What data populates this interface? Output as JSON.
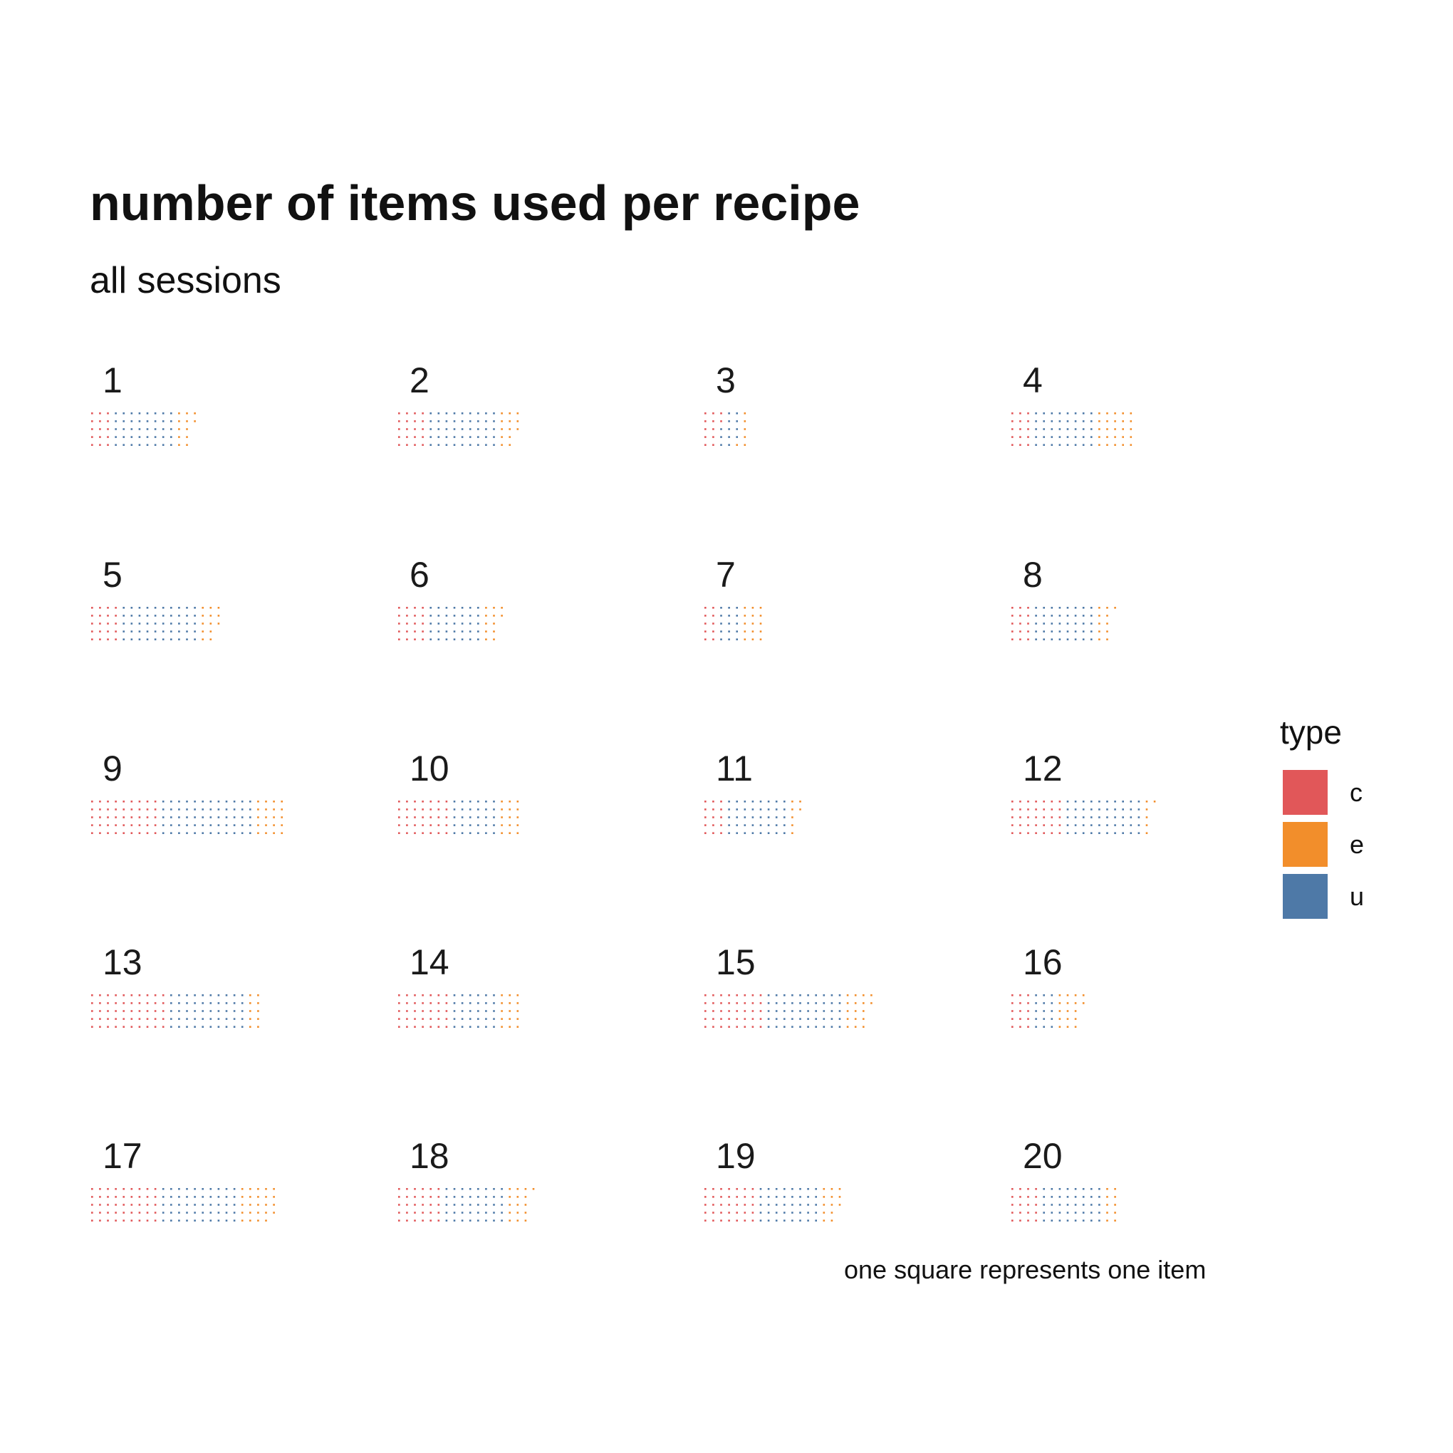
{
  "chart_data": {
    "type": "waffle",
    "title": "number of items used per recipe",
    "subtitle": "all sessions",
    "caption": "one square represents one item",
    "legend": {
      "title": "type",
      "position": "right",
      "entries": [
        {
          "key": "c",
          "label": "c",
          "color": "#E15759"
        },
        {
          "key": "e",
          "label": "e",
          "color": "#F28E2B"
        },
        {
          "key": "u",
          "label": "u",
          "color": "#4E79A7"
        }
      ]
    },
    "squares_per_column": 5,
    "grid": false,
    "panels": [
      {
        "label": "1",
        "c": 15,
        "u": 40,
        "e": 12
      },
      {
        "label": "2",
        "c": 20,
        "u": 45,
        "e": 13
      },
      {
        "label": "3",
        "c": 12,
        "u": 12,
        "e": 6
      },
      {
        "label": "4",
        "c": 15,
        "u": 40,
        "e": 25
      },
      {
        "label": "5",
        "c": 20,
        "u": 50,
        "e": 13
      },
      {
        "label": "6",
        "c": 20,
        "u": 35,
        "e": 12
      },
      {
        "label": "7",
        "c": 10,
        "u": 15,
        "e": 15
      },
      {
        "label": "8",
        "c": 15,
        "u": 40,
        "e": 11
      },
      {
        "label": "9",
        "c": 45,
        "u": 60,
        "e": 20
      },
      {
        "label": "10",
        "c": 35,
        "u": 30,
        "e": 15
      },
      {
        "label": "11",
        "c": 15,
        "u": 40,
        "e": 7
      },
      {
        "label": "12",
        "c": 35,
        "u": 50,
        "e": 6
      },
      {
        "label": "13",
        "c": 50,
        "u": 50,
        "e": 10
      },
      {
        "label": "14",
        "c": 35,
        "u": 30,
        "e": 15
      },
      {
        "label": "15",
        "c": 40,
        "u": 50,
        "e": 17
      },
      {
        "label": "16",
        "c": 15,
        "u": 15,
        "e": 17
      },
      {
        "label": "17",
        "c": 45,
        "u": 50,
        "e": 24
      },
      {
        "label": "18",
        "c": 30,
        "u": 40,
        "e": 16
      },
      {
        "label": "19",
        "c": 35,
        "u": 40,
        "e": 13
      },
      {
        "label": "20",
        "c": 20,
        "u": 40,
        "e": 10
      }
    ]
  }
}
